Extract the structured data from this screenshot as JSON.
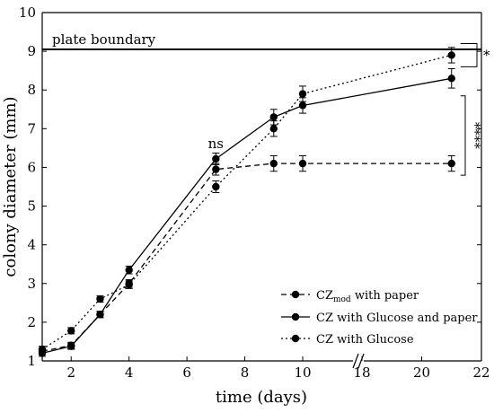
{
  "chart_data": {
    "type": "line",
    "xlabel": "time (days)",
    "ylabel": "colony diameter (mm)",
    "ylim": [
      1,
      10
    ],
    "x_axis_break": [
      10,
      18
    ],
    "x_segments": [
      {
        "from": 1,
        "to": 10
      },
      {
        "from": 18,
        "to": 22
      }
    ],
    "x_ticks": [
      2,
      4,
      6,
      8,
      10,
      18,
      20,
      22
    ],
    "y_ticks": [
      1,
      2,
      3,
      4,
      5,
      6,
      7,
      8,
      9,
      10
    ],
    "grid": false,
    "legend": "bottom-right",
    "reference_line": {
      "y": 9.05,
      "label": "plate boundary"
    },
    "series": [
      {
        "name_main": "CZ",
        "name_sub": "mod",
        "name_rest": " with paper",
        "style": "dashed",
        "x": [
          1,
          2,
          3,
          4,
          7,
          9,
          10,
          21
        ],
        "y": [
          1.25,
          1.4,
          2.2,
          3.0,
          5.95,
          6.1,
          6.1,
          6.1
        ],
        "err": [
          0.08,
          0.08,
          0.08,
          0.1,
          0.15,
          0.2,
          0.2,
          0.2
        ]
      },
      {
        "name": "CZ with Glucose and paper",
        "style": "solid",
        "x": [
          1,
          2,
          3,
          4,
          7,
          9,
          10,
          21
        ],
        "y": [
          1.2,
          1.38,
          2.2,
          3.35,
          6.22,
          7.3,
          7.6,
          8.3
        ],
        "err": [
          0.08,
          0.08,
          0.08,
          0.1,
          0.15,
          0.2,
          0.2,
          0.25
        ]
      },
      {
        "name": "CZ with Glucose",
        "style": "dotted",
        "x": [
          1,
          2,
          3,
          4,
          7,
          9,
          10,
          21
        ],
        "y": [
          1.3,
          1.78,
          2.6,
          2.97,
          5.5,
          7.0,
          7.9,
          8.9
        ],
        "err": [
          0.08,
          0.08,
          0.08,
          0.1,
          0.15,
          0.2,
          0.2,
          0.2
        ]
      }
    ],
    "annotations": [
      {
        "text": "ns",
        "x": 7,
        "y": 6.5
      },
      {
        "text": "*",
        "between": [
          2,
          1
        ],
        "at_x": 21
      },
      {
        "text": "****",
        "between": [
          1,
          0
        ],
        "at_x": 21
      }
    ]
  }
}
